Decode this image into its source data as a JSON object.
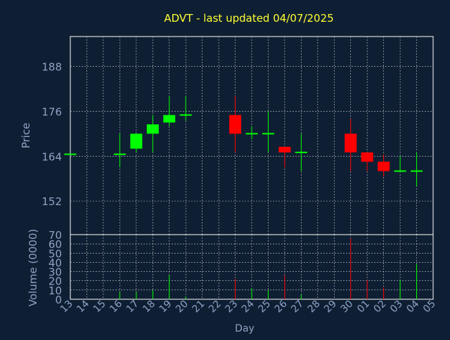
{
  "title": "ADVT - last updated 04/07/2025",
  "colors": {
    "background": "#0f1f33",
    "title": "#ffff33",
    "axis_text": "#8ea2c4",
    "frame": "#ffffff",
    "grid": "#c8c8c8",
    "up": "#00ff00",
    "down": "#ff0000"
  },
  "chart_data": [
    {
      "type": "candlestick",
      "ylabel": "Price",
      "ylim": [
        143,
        196
      ],
      "yticks": [
        152,
        164,
        176,
        188
      ],
      "grid": true,
      "categories": [
        "13",
        "14",
        "15",
        "16",
        "17",
        "18",
        "19",
        "20",
        "21",
        "22",
        "23",
        "24",
        "25",
        "26",
        "27",
        "28",
        "29",
        "30",
        "01",
        "02",
        "03",
        "04",
        "05"
      ],
      "candles": [
        {
          "day": "13",
          "open": 164.5,
          "high": 164.5,
          "low": 164.5,
          "close": 164.5
        },
        {
          "day": "16",
          "open": 164.5,
          "high": 170,
          "low": 161,
          "close": 164.5
        },
        {
          "day": "17",
          "open": 166,
          "high": 170,
          "low": 165,
          "close": 170
        },
        {
          "day": "18",
          "open": 170,
          "high": 175,
          "low": 165,
          "close": 172.5
        },
        {
          "day": "19",
          "open": 173,
          "high": 180,
          "low": 172,
          "close": 175
        },
        {
          "day": "20",
          "open": 175,
          "high": 180,
          "low": 173.5,
          "close": 175
        },
        {
          "day": "23",
          "open": 175,
          "high": 180,
          "low": 165,
          "close": 170
        },
        {
          "day": "24",
          "open": 170,
          "high": 172,
          "low": 168.5,
          "close": 170
        },
        {
          "day": "25",
          "open": 170,
          "high": 176,
          "low": 165,
          "close": 170
        },
        {
          "day": "26",
          "open": 166.5,
          "high": 166.5,
          "low": 161,
          "close": 165
        },
        {
          "day": "27",
          "open": 165,
          "high": 170,
          "low": 160,
          "close": 165
        },
        {
          "day": "30",
          "open": 170,
          "high": 174,
          "low": 160,
          "close": 165
        },
        {
          "day": "01",
          "open": 165,
          "high": 165,
          "low": 160,
          "close": 162.5
        },
        {
          "day": "02",
          "open": 162.5,
          "high": 164.5,
          "low": 158.5,
          "close": 160
        },
        {
          "day": "03",
          "open": 160,
          "high": 164,
          "low": 160,
          "close": 160
        },
        {
          "day": "04",
          "open": 160,
          "high": 165,
          "low": 156,
          "close": 160
        }
      ]
    },
    {
      "type": "bar",
      "xlabel": "Day",
      "ylabel": "Volume (0000)",
      "ylim": [
        0,
        70
      ],
      "yticks": [
        0,
        10,
        20,
        30,
        40,
        50,
        60,
        70
      ],
      "grid": true,
      "categories": [
        "13",
        "14",
        "15",
        "16",
        "17",
        "18",
        "19",
        "20",
        "21",
        "22",
        "23",
        "24",
        "25",
        "26",
        "27",
        "28",
        "29",
        "30",
        "01",
        "02",
        "03",
        "04",
        "05"
      ],
      "bars": [
        {
          "day": "13",
          "value": 0,
          "direction": "up"
        },
        {
          "day": "16",
          "value": 8,
          "direction": "up"
        },
        {
          "day": "17",
          "value": 8,
          "direction": "up"
        },
        {
          "day": "18",
          "value": 10,
          "direction": "up"
        },
        {
          "day": "19",
          "value": 26,
          "direction": "up"
        },
        {
          "day": "20",
          "value": 3,
          "direction": "up"
        },
        {
          "day": "23",
          "value": 22,
          "direction": "down"
        },
        {
          "day": "24",
          "value": 12,
          "direction": "up"
        },
        {
          "day": "25",
          "value": 10,
          "direction": "up"
        },
        {
          "day": "26",
          "value": 26,
          "direction": "down"
        },
        {
          "day": "27",
          "value": 5,
          "direction": "up"
        },
        {
          "day": "30",
          "value": 66,
          "direction": "down"
        },
        {
          "day": "01",
          "value": 21,
          "direction": "down"
        },
        {
          "day": "02",
          "value": 13,
          "direction": "down"
        },
        {
          "day": "03",
          "value": 21,
          "direction": "up"
        },
        {
          "day": "04",
          "value": 38,
          "direction": "up"
        }
      ]
    }
  ]
}
